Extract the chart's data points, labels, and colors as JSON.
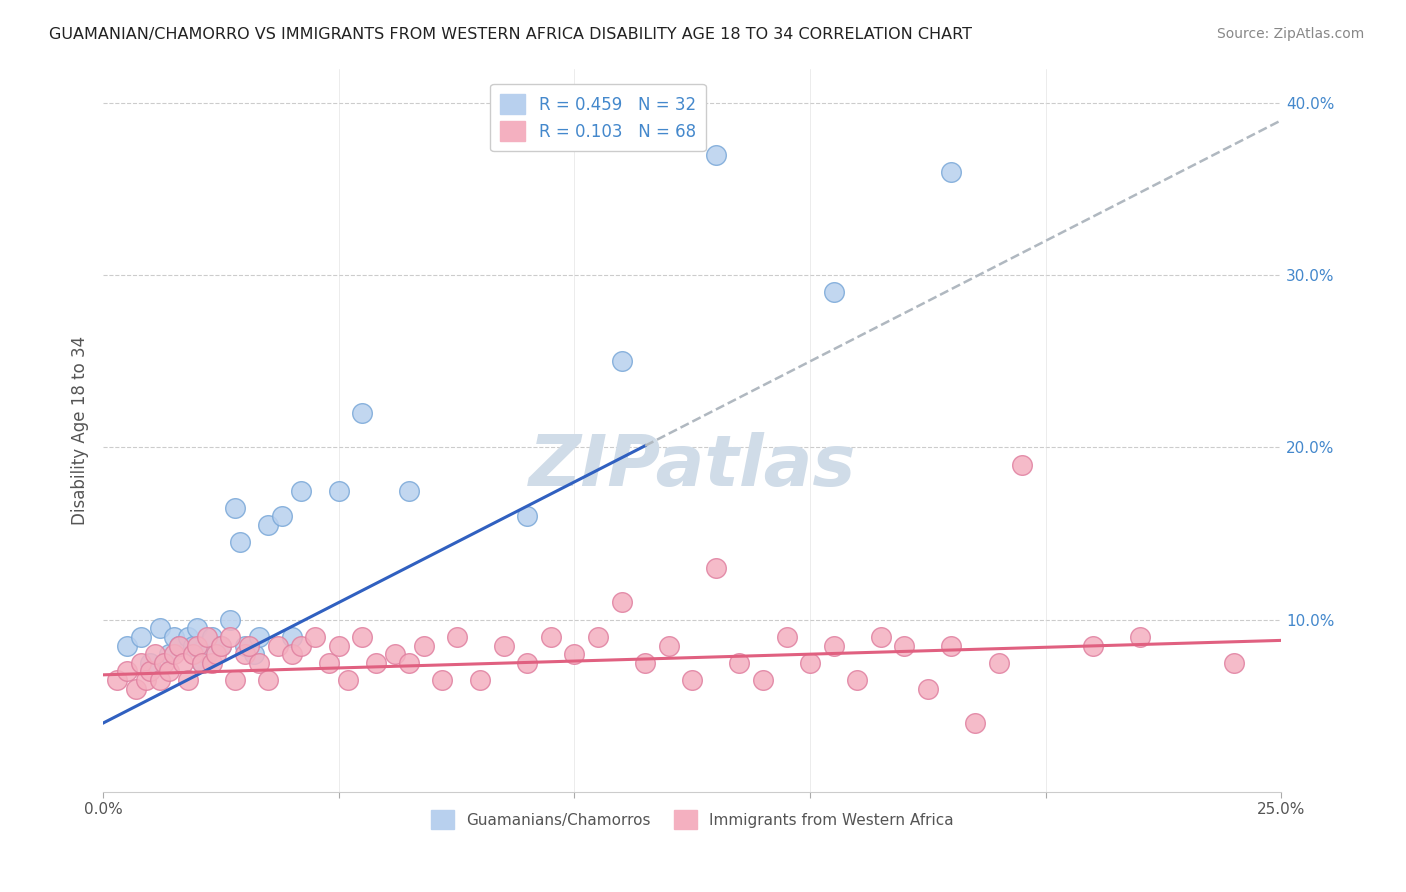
{
  "title": "GUAMANIAN/CHAMORRO VS IMMIGRANTS FROM WESTERN AFRICA DISABILITY AGE 18 TO 34 CORRELATION CHART",
  "source": "Source: ZipAtlas.com",
  "ylabel": "Disability Age 18 to 34",
  "xlim": [
    0.0,
    0.25
  ],
  "ylim": [
    0.0,
    0.42
  ],
  "xticks_labeled": [
    0.0,
    0.25
  ],
  "yticks": [
    0.1,
    0.2,
    0.3,
    0.4
  ],
  "yticks_grid": [
    0.1,
    0.2,
    0.3,
    0.4
  ],
  "xticks_minor": [
    0.05,
    0.1,
    0.15,
    0.2
  ],
  "blue_scatter_x": [
    0.005,
    0.008,
    0.01,
    0.012,
    0.014,
    0.015,
    0.016,
    0.018,
    0.019,
    0.02,
    0.021,
    0.022,
    0.023,
    0.025,
    0.027,
    0.028,
    0.029,
    0.03,
    0.032,
    0.033,
    0.035,
    0.038,
    0.04,
    0.042,
    0.05,
    0.055,
    0.065,
    0.09,
    0.11,
    0.13,
    0.155,
    0.18
  ],
  "blue_scatter_y": [
    0.085,
    0.09,
    0.075,
    0.095,
    0.08,
    0.09,
    0.085,
    0.09,
    0.085,
    0.095,
    0.075,
    0.08,
    0.09,
    0.085,
    0.1,
    0.165,
    0.145,
    0.085,
    0.08,
    0.09,
    0.155,
    0.16,
    0.09,
    0.175,
    0.175,
    0.22,
    0.175,
    0.16,
    0.25,
    0.37,
    0.29,
    0.36
  ],
  "pink_scatter_x": [
    0.003,
    0.005,
    0.007,
    0.008,
    0.009,
    0.01,
    0.011,
    0.012,
    0.013,
    0.014,
    0.015,
    0.016,
    0.017,
    0.018,
    0.019,
    0.02,
    0.021,
    0.022,
    0.023,
    0.024,
    0.025,
    0.027,
    0.028,
    0.03,
    0.031,
    0.033,
    0.035,
    0.037,
    0.04,
    0.042,
    0.045,
    0.048,
    0.05,
    0.052,
    0.055,
    0.058,
    0.062,
    0.065,
    0.068,
    0.072,
    0.075,
    0.08,
    0.085,
    0.09,
    0.095,
    0.1,
    0.105,
    0.11,
    0.115,
    0.12,
    0.125,
    0.13,
    0.135,
    0.14,
    0.145,
    0.15,
    0.155,
    0.16,
    0.165,
    0.17,
    0.175,
    0.18,
    0.185,
    0.19,
    0.195,
    0.21,
    0.22,
    0.24
  ],
  "pink_scatter_y": [
    0.065,
    0.07,
    0.06,
    0.075,
    0.065,
    0.07,
    0.08,
    0.065,
    0.075,
    0.07,
    0.08,
    0.085,
    0.075,
    0.065,
    0.08,
    0.085,
    0.075,
    0.09,
    0.075,
    0.08,
    0.085,
    0.09,
    0.065,
    0.08,
    0.085,
    0.075,
    0.065,
    0.085,
    0.08,
    0.085,
    0.09,
    0.075,
    0.085,
    0.065,
    0.09,
    0.075,
    0.08,
    0.075,
    0.085,
    0.065,
    0.09,
    0.065,
    0.085,
    0.075,
    0.09,
    0.08,
    0.09,
    0.11,
    0.075,
    0.085,
    0.065,
    0.13,
    0.075,
    0.065,
    0.09,
    0.075,
    0.085,
    0.065,
    0.09,
    0.085,
    0.06,
    0.085,
    0.04,
    0.075,
    0.19,
    0.085,
    0.09,
    0.075
  ],
  "blue_line_color": "#3060c0",
  "pink_line_color": "#e06080",
  "dashed_line_color": "#b0b8c0",
  "background_color": "#ffffff",
  "watermark_text": "ZIPatlas",
  "watermark_color": "#d0dce8",
  "r_blue": 0.459,
  "n_blue": 32,
  "r_pink": 0.103,
  "n_pink": 68,
  "blue_line_x": [
    0.0,
    0.115
  ],
  "dashed_line_x": [
    0.115,
    0.25
  ],
  "blue_line_intercept": 0.04,
  "blue_line_slope": 1.4,
  "pink_line_intercept": 0.068,
  "pink_line_slope": 0.08
}
